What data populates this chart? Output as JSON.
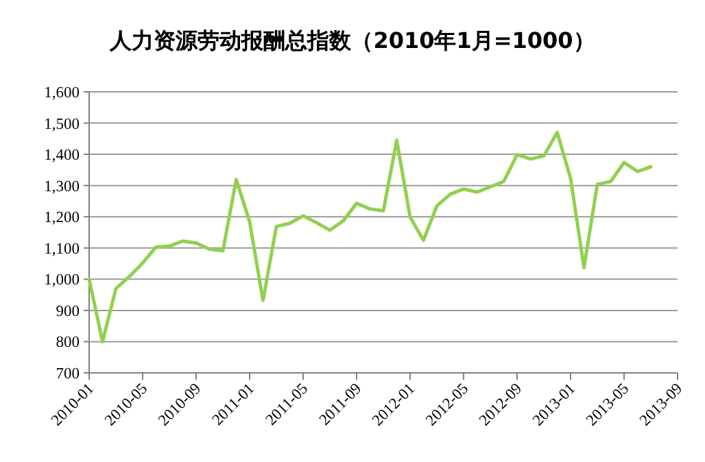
{
  "chart_data": {
    "type": "line",
    "title": "人力资源劳动报酬总指数（2010年1月=1000）",
    "x": [
      "2010-01",
      "2010-02",
      "2010-03",
      "2010-04",
      "2010-05",
      "2010-06",
      "2010-07",
      "2010-08",
      "2010-09",
      "2010-10",
      "2010-11",
      "2010-12",
      "2011-01",
      "2011-02",
      "2011-03",
      "2011-04",
      "2011-05",
      "2011-06",
      "2011-07",
      "2011-08",
      "2011-09",
      "2011-10",
      "2011-11",
      "2011-12",
      "2012-01",
      "2012-02",
      "2012-03",
      "2012-04",
      "2012-05",
      "2012-06",
      "2012-07",
      "2012-08",
      "2012-09",
      "2012-10",
      "2012-11",
      "2012-12",
      "2013-01",
      "2013-02",
      "2013-03",
      "2013-04",
      "2013-05",
      "2013-06",
      "2013-07"
    ],
    "series": [
      {
        "color": "#92d050",
        "values": [
          1000,
          800,
          970,
          1008,
          1052,
          1103,
          1106,
          1122,
          1116,
          1096,
          1091,
          1319,
          1184,
          932,
          1169,
          1179,
          1203,
          1181,
          1157,
          1187,
          1243,
          1225,
          1219,
          1445,
          1199,
          1125,
          1235,
          1272,
          1289,
          1279,
          1296,
          1313,
          1399,
          1385,
          1395,
          1470,
          1323,
          1037,
          1304,
          1313,
          1374,
          1345,
          1360
        ]
      }
    ],
    "xlim": [
      "2010-01",
      "2013-09"
    ],
    "xticks": [
      "2010-01",
      "2010-05",
      "2010-09",
      "2011-01",
      "2011-05",
      "2011-09",
      "2012-01",
      "2012-05",
      "2012-09",
      "2013-01",
      "2013-05",
      "2013-09"
    ],
    "ylim": [
      700,
      1600
    ],
    "yticks": [
      {
        "value": 700,
        "label": "700"
      },
      {
        "value": 800,
        "label": "800"
      },
      {
        "value": 900,
        "label": "900"
      },
      {
        "value": 1000,
        "label": "1,000"
      },
      {
        "value": 1100,
        "label": "1,100"
      },
      {
        "value": 1200,
        "label": "1,200"
      },
      {
        "value": 1300,
        "label": "1,300"
      },
      {
        "value": 1400,
        "label": "1,400"
      },
      {
        "value": 1500,
        "label": "1,500"
      },
      {
        "value": 1600,
        "label": "1,600"
      }
    ],
    "grid": "y",
    "marker": "none",
    "line_style": "solid"
  }
}
